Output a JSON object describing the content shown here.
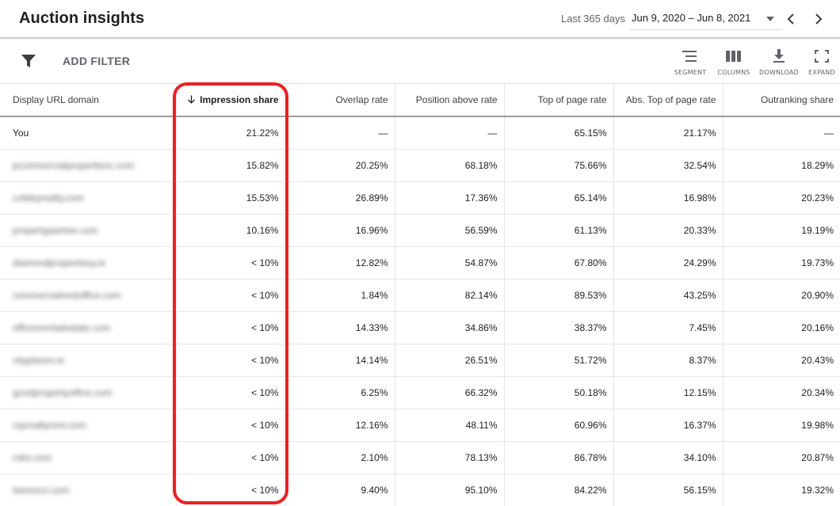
{
  "header": {
    "title": "Auction insights",
    "range_label": "Last 365 days",
    "range_value": "Jun 9, 2020 – Jun 8, 2021"
  },
  "toolbar": {
    "add_filter": "ADD FILTER",
    "tools": [
      {
        "label": "SEGMENT",
        "icon": "segment-icon"
      },
      {
        "label": "COLUMNS",
        "icon": "columns-icon"
      },
      {
        "label": "DOWNLOAD",
        "icon": "download-icon"
      },
      {
        "label": "EXPAND",
        "icon": "expand-icon"
      }
    ]
  },
  "table": {
    "columns": [
      "Display URL domain",
      "Impression share",
      "Overlap rate",
      "Position above rate",
      "Top of page rate",
      "Abs. Top of page rate",
      "Outranking share"
    ],
    "sorted_column": "Impression share",
    "rows": [
      {
        "domain": "You",
        "impression_share": "21.22%",
        "overlap_rate": "—",
        "position_above_rate": "—",
        "top_of_page_rate": "65.15%",
        "abs_top_of_page_rate": "21.17%",
        "outranking_share": "—"
      },
      {
        "domain": "pcommercialpropertiesc.com",
        "impression_share": "15.82%",
        "overlap_rate": "20.25%",
        "position_above_rate": "68.18%",
        "top_of_page_rate": "75.66%",
        "abs_top_of_page_rate": "32.54%",
        "outranking_share": "18.29%"
      },
      {
        "domain": "cofebyrealty.com",
        "impression_share": "15.53%",
        "overlap_rate": "26.89%",
        "position_above_rate": "17.36%",
        "top_of_page_rate": "65.14%",
        "abs_top_of_page_rate": "16.98%",
        "outranking_share": "20.23%"
      },
      {
        "domain": "propertypartner.com",
        "impression_share": "10.16%",
        "overlap_rate": "16.96%",
        "position_above_rate": "56.59%",
        "top_of_page_rate": "61.13%",
        "abs_top_of_page_rate": "20.33%",
        "outranking_share": "19.19%"
      },
      {
        "domain": "diamondpropertiesy.ie",
        "impression_share": "< 10%",
        "overlap_rate": "12.82%",
        "position_above_rate": "54.87%",
        "top_of_page_rate": "67.80%",
        "abs_top_of_page_rate": "24.29%",
        "outranking_share": "19.73%"
      },
      {
        "domain": "commercialrentoffice.com",
        "impression_share": "< 10%",
        "overlap_rate": "1.84%",
        "position_above_rate": "82.14%",
        "top_of_page_rate": "89.53%",
        "abs_top_of_page_rate": "43.25%",
        "outranking_share": "20.90%"
      },
      {
        "domain": "officesrentalestate.com",
        "impression_share": "< 10%",
        "overlap_rate": "14.33%",
        "position_above_rate": "34.86%",
        "top_of_page_rate": "38.37%",
        "abs_top_of_page_rate": "7.45%",
        "outranking_share": "20.16%"
      },
      {
        "domain": "cityplaces.ie",
        "impression_share": "< 10%",
        "overlap_rate": "14.14%",
        "position_above_rate": "26.51%",
        "top_of_page_rate": "51.72%",
        "abs_top_of_page_rate": "8.37%",
        "outranking_share": "20.43%"
      },
      {
        "domain": "goodpropertyoffice.com",
        "impression_share": "< 10%",
        "overlap_rate": "6.25%",
        "position_above_rate": "66.32%",
        "top_of_page_rate": "50.18%",
        "abs_top_of_page_rate": "12.15%",
        "outranking_share": "20.34%"
      },
      {
        "domain": "rayrealtyrent.com",
        "impression_share": "< 10%",
        "overlap_rate": "12.16%",
        "position_above_rate": "48.11%",
        "top_of_page_rate": "60.96%",
        "abs_top_of_page_rate": "16.37%",
        "outranking_share": "19.98%"
      },
      {
        "domain": "robs.com",
        "impression_share": "< 10%",
        "overlap_rate": "2.10%",
        "position_above_rate": "78.13%",
        "top_of_page_rate": "86.78%",
        "abs_top_of_page_rate": "34.10%",
        "outranking_share": "20.87%"
      },
      {
        "domain": "banesco.com",
        "impression_share": "< 10%",
        "overlap_rate": "9.40%",
        "position_above_rate": "95.10%",
        "top_of_page_rate": "84.22%",
        "abs_top_of_page_rate": "56.15%",
        "outranking_share": "19.32%"
      }
    ]
  },
  "annotation": {
    "color": "#ee1f23"
  }
}
